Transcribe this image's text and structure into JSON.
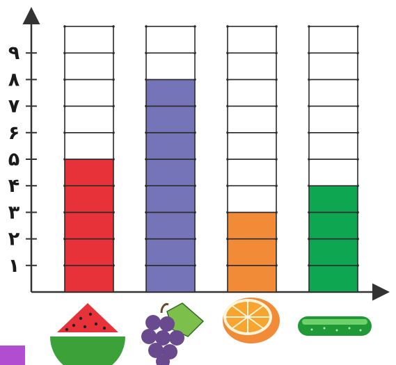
{
  "chart_data": {
    "type": "bar",
    "categories": [
      "watermelon",
      "grapes",
      "orange",
      "cucumber"
    ],
    "values": [
      5,
      8,
      3,
      4
    ],
    "max_cells": 10,
    "ylim": [
      0,
      10
    ],
    "y_tick_labels": [
      "١",
      "٢",
      "٣",
      "۴",
      "۵",
      "۶",
      "٧",
      "٨",
      "٩"
    ],
    "bar_colors": [
      "#e8323a",
      "#7574b9",
      "#f28b37",
      "#0fa652"
    ],
    "grid": true,
    "legend": "none"
  },
  "icons": [
    "watermelon-icon",
    "grapes-icon",
    "orange-icon",
    "cucumber-icon"
  ],
  "accent_color": "#b04dd0"
}
